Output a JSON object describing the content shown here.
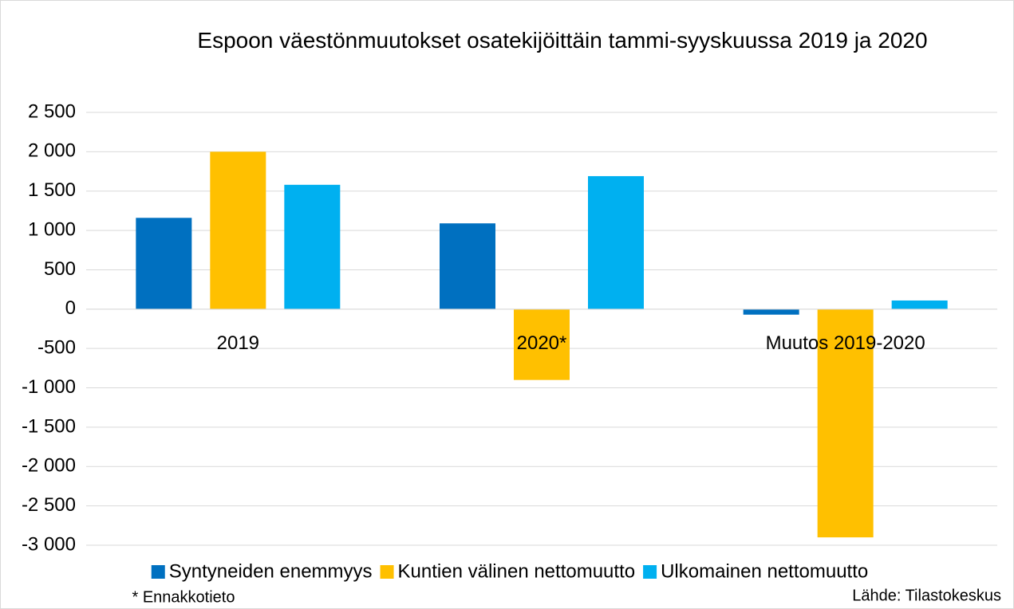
{
  "chart_data": {
    "type": "bar",
    "title": "Espoon väestönmuutokset osatekijöittäin tammi-syyskuussa 2019 ja 2020",
    "categories": [
      "2019",
      "2020*",
      "Muutos 2019-2020"
    ],
    "series": [
      {
        "name": "Syntyneiden enemmyys",
        "color": "#0070c0",
        "values": [
          1160,
          1090,
          -70
        ]
      },
      {
        "name": "Kuntien välinen nettomuutto",
        "color": "#ffc000",
        "values": [
          2000,
          -900,
          -2900
        ]
      },
      {
        "name": "Ulkomainen nettomuutto",
        "color": "#00b0f0",
        "values": [
          1580,
          1690,
          110
        ]
      }
    ],
    "ylim": [
      -3000,
      2500
    ],
    "yticks": [
      {
        "value": -3000,
        "label": "-3 000"
      },
      {
        "value": -2500,
        "label": "-2 500"
      },
      {
        "value": -2000,
        "label": "-2 000"
      },
      {
        "value": -1500,
        "label": "-1 500"
      },
      {
        "value": -1000,
        "label": "-1 000"
      },
      -500,
      0,
      500,
      {
        "value": 1000,
        "label": "1 000"
      },
      {
        "value": 1500,
        "label": "1 500"
      },
      {
        "value": 2000,
        "label": "2 000"
      },
      {
        "value": 2500,
        "label": "2 500"
      }
    ],
    "grid": true,
    "legend": "bottom",
    "annotations": [
      "* Ennakkotieto",
      "Lähde: Tilastokeskus"
    ]
  }
}
